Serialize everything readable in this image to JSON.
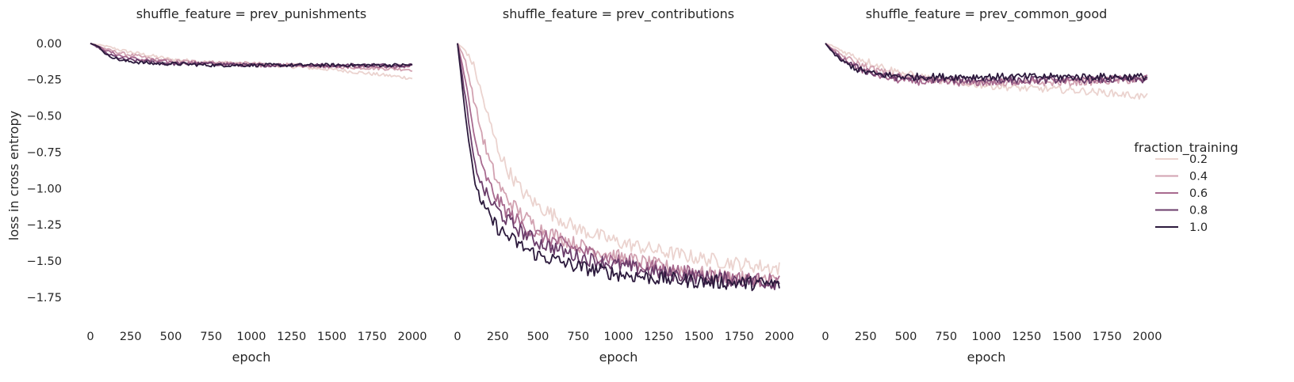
{
  "chart_data": {
    "type": "line",
    "ylabel": "loss in cross entropy",
    "xlabel": "epoch",
    "xlim": [
      0,
      2000
    ],
    "ylim": [
      -1.93,
      0.07
    ],
    "xticks": [
      0,
      250,
      500,
      750,
      1000,
      1250,
      1500,
      1750,
      2000
    ],
    "yticks": [
      0.0,
      -0.25,
      -0.5,
      -0.75,
      -1.0,
      -1.25,
      -1.5,
      -1.75
    ],
    "ytick_labels": [
      "0.00",
      "−0.25",
      "−0.50",
      "−0.75",
      "−1.00",
      "−1.25",
      "−1.50",
      "−1.75"
    ],
    "grid": false,
    "legend": {
      "title": "fraction_training",
      "placement": "right",
      "entries": [
        {
          "label": "0.2",
          "color": "#ebd3cf"
        },
        {
          "label": "0.4",
          "color": "#d2a2b1"
        },
        {
          "label": "0.6",
          "color": "#a86a8f"
        },
        {
          "label": "0.8",
          "color": "#6b3d6b"
        },
        {
          "label": "1.0",
          "color": "#2c1a3d"
        }
      ]
    },
    "panels": [
      {
        "title": "shuffle_feature = prev_punishments",
        "x": [
          0,
          50,
          100,
          200,
          300,
          400,
          500,
          750,
          1000,
          1250,
          1500,
          1750,
          2000
        ],
        "series": [
          {
            "name": "0.2",
            "values": [
              0.0,
              -0.01,
              -0.02,
              -0.05,
              -0.07,
              -0.09,
              -0.11,
              -0.13,
              -0.14,
              -0.16,
              -0.18,
              -0.21,
              -0.24
            ]
          },
          {
            "name": "0.4",
            "values": [
              0.0,
              -0.02,
              -0.04,
              -0.07,
              -0.09,
              -0.11,
              -0.12,
              -0.13,
              -0.14,
              -0.15,
              -0.16,
              -0.17,
              -0.18
            ]
          },
          {
            "name": "0.6",
            "values": [
              0.0,
              -0.02,
              -0.05,
              -0.09,
              -0.11,
              -0.12,
              -0.13,
              -0.14,
              -0.15,
              -0.15,
              -0.16,
              -0.16,
              -0.16
            ]
          },
          {
            "name": "0.8",
            "values": [
              0.0,
              -0.03,
              -0.07,
              -0.11,
              -0.12,
              -0.13,
              -0.14,
              -0.14,
              -0.15,
              -0.15,
              -0.15,
              -0.15,
              -0.15
            ]
          },
          {
            "name": "1.0",
            "values": [
              0.0,
              -0.02,
              -0.08,
              -0.12,
              -0.13,
              -0.14,
              -0.14,
              -0.15,
              -0.15,
              -0.15,
              -0.15,
              -0.15,
              -0.15
            ]
          }
        ]
      },
      {
        "title": "shuffle_feature = prev_contributions",
        "x": [
          0,
          50,
          100,
          150,
          200,
          250,
          300,
          400,
          500,
          750,
          1000,
          1250,
          1500,
          1750,
          2000
        ],
        "series": [
          {
            "name": "0.2",
            "values": [
              0.0,
              -0.05,
              -0.15,
              -0.35,
              -0.55,
              -0.72,
              -0.85,
              -1.02,
              -1.12,
              -1.28,
              -1.37,
              -1.43,
              -1.48,
              -1.52,
              -1.55
            ]
          },
          {
            "name": "0.4",
            "values": [
              0.0,
              -0.12,
              -0.38,
              -0.62,
              -0.82,
              -0.96,
              -1.06,
              -1.18,
              -1.27,
              -1.39,
              -1.47,
              -1.53,
              -1.58,
              -1.62,
              -1.64
            ]
          },
          {
            "name": "0.6",
            "values": [
              0.0,
              -0.25,
              -0.62,
              -0.85,
              -0.98,
              -1.08,
              -1.15,
              -1.25,
              -1.32,
              -1.42,
              -1.5,
              -1.55,
              -1.59,
              -1.62,
              -1.64
            ]
          },
          {
            "name": "0.8",
            "values": [
              0.0,
              -0.38,
              -0.8,
              -0.98,
              -1.08,
              -1.15,
              -1.21,
              -1.3,
              -1.37,
              -1.47,
              -1.53,
              -1.58,
              -1.61,
              -1.63,
              -1.65
            ]
          },
          {
            "name": "1.0",
            "values": [
              0.0,
              -0.5,
              -0.92,
              -1.1,
              -1.2,
              -1.27,
              -1.32,
              -1.4,
              -1.46,
              -1.54,
              -1.59,
              -1.62,
              -1.64,
              -1.65,
              -1.66
            ]
          }
        ]
      },
      {
        "title": "shuffle_feature = prev_common_good",
        "x": [
          0,
          50,
          100,
          200,
          300,
          400,
          500,
          750,
          1000,
          1250,
          1500,
          1750,
          2000
        ],
        "series": [
          {
            "name": "0.2",
            "values": [
              0.0,
              -0.02,
              -0.05,
              -0.1,
              -0.14,
              -0.18,
              -0.21,
              -0.26,
              -0.29,
              -0.31,
              -0.32,
              -0.34,
              -0.37
            ]
          },
          {
            "name": "0.4",
            "values": [
              0.0,
              -0.04,
              -0.08,
              -0.14,
              -0.18,
              -0.21,
              -0.23,
              -0.26,
              -0.27,
              -0.27,
              -0.27,
              -0.26,
              -0.25
            ]
          },
          {
            "name": "0.6",
            "values": [
              0.0,
              -0.05,
              -0.1,
              -0.17,
              -0.21,
              -0.24,
              -0.26,
              -0.27,
              -0.27,
              -0.26,
              -0.25,
              -0.25,
              -0.24
            ]
          },
          {
            "name": "0.8",
            "values": [
              0.0,
              -0.06,
              -0.11,
              -0.17,
              -0.21,
              -0.23,
              -0.24,
              -0.25,
              -0.25,
              -0.25,
              -0.25,
              -0.25,
              -0.25
            ]
          },
          {
            "name": "1.0",
            "values": [
              0.0,
              -0.07,
              -0.12,
              -0.18,
              -0.21,
              -0.22,
              -0.23,
              -0.23,
              -0.23,
              -0.23,
              -0.23,
              -0.23,
              -0.23
            ]
          }
        ]
      }
    ]
  }
}
